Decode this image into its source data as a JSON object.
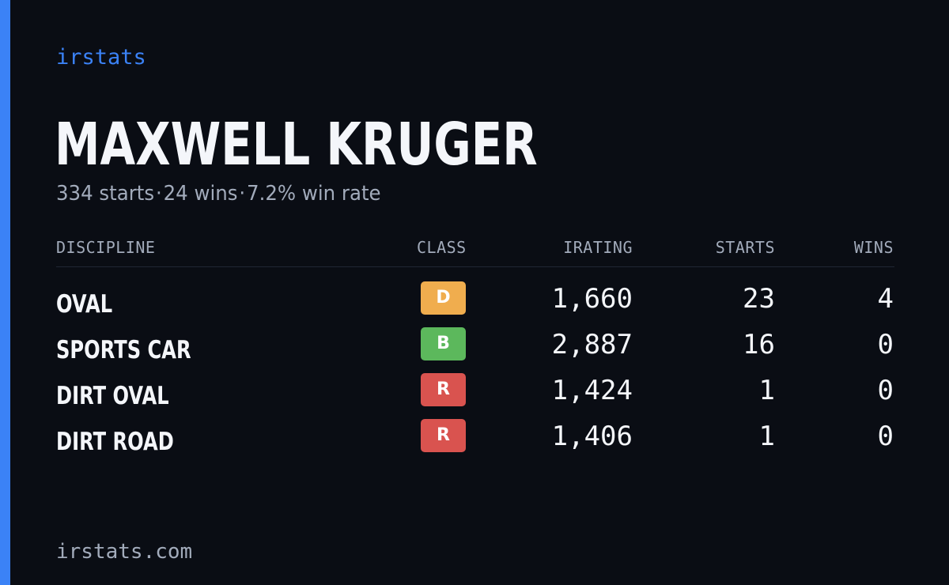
{
  "brand": "irstats",
  "player": {
    "name": "MAXWELL KRUGER"
  },
  "summary": {
    "starts": "334 starts",
    "wins": "24 wins",
    "win_rate": "7.2% win rate",
    "separator": "·"
  },
  "table": {
    "headers": {
      "discipline": "DISCIPLINE",
      "class": "CLASS",
      "irating": "IRATING",
      "starts": "STARTS",
      "wins": "WINS"
    },
    "rows": [
      {
        "discipline": "OVAL",
        "class": "D",
        "class_color": "#f0ad4e",
        "irating": "1,660",
        "starts": "23",
        "wins": "4"
      },
      {
        "discipline": "SPORTS CAR",
        "class": "B",
        "class_color": "#5cb85c",
        "irating": "2,887",
        "starts": "16",
        "wins": "0"
      },
      {
        "discipline": "DIRT OVAL",
        "class": "R",
        "class_color": "#d9534f",
        "irating": "1,424",
        "starts": "1",
        "wins": "0"
      },
      {
        "discipline": "DIRT ROAD",
        "class": "R",
        "class_color": "#d9534f",
        "irating": "1,406",
        "starts": "1",
        "wins": "0"
      }
    ]
  },
  "footer": {
    "url": "irstats.com"
  },
  "colors": {
    "background": "#0a0d14",
    "accent": "#3b82f6",
    "text": "#f4f6fa",
    "muted": "#a2abbb"
  }
}
